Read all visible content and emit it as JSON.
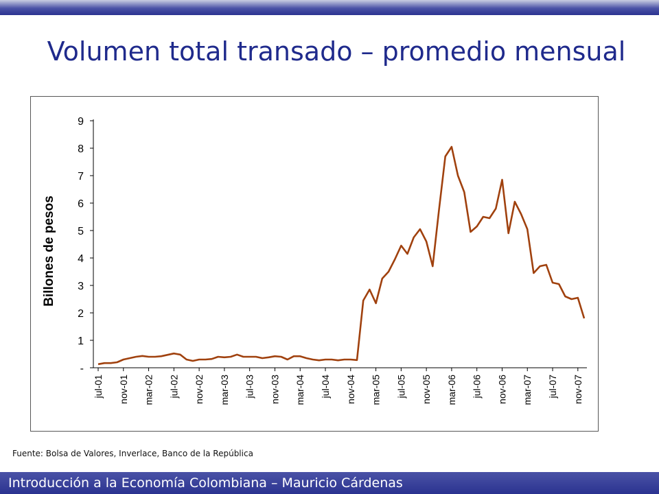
{
  "slide": {
    "title": "Volumen total transado – promedio mensual",
    "source": "Fuente: Bolsa de Valores, Inverlace, Banco de la República",
    "footer": "Introducción a la Economía Colombiana – Mauricio Cárdenas"
  },
  "colors": {
    "title": "#1f2a8c",
    "band": "#2b3390",
    "series": "#a0410e"
  },
  "chart_data": {
    "type": "line",
    "title": "",
    "xlabel": "",
    "ylabel": "Billones de pesos",
    "ylim": [
      0,
      9
    ],
    "y_ticks": [
      "-",
      "1",
      "2",
      "3",
      "4",
      "5",
      "6",
      "7",
      "8",
      "9"
    ],
    "x_ticks": [
      "jul-01",
      "nov-01",
      "mar-02",
      "jul-02",
      "nov-02",
      "mar-03",
      "jul-03",
      "nov-03",
      "mar-04",
      "jul-04",
      "nov-04",
      "mar-05",
      "jul-05",
      "nov-05",
      "mar-06",
      "jul-06",
      "nov-06",
      "mar-07",
      "jul-07",
      "nov-07"
    ],
    "grid": false,
    "series": [
      {
        "x": [
          "jul-01",
          "ago-01",
          "sep-01",
          "oct-01",
          "nov-01",
          "dic-01",
          "ene-02",
          "feb-02",
          "mar-02",
          "abr-02",
          "may-02",
          "jun-02",
          "jul-02",
          "ago-02",
          "sep-02",
          "oct-02",
          "nov-02",
          "dic-02",
          "ene-03",
          "feb-03",
          "mar-03",
          "abr-03",
          "may-03",
          "jun-03",
          "jul-03",
          "ago-03",
          "sep-03",
          "oct-03",
          "nov-03",
          "dic-03",
          "ene-04",
          "feb-04",
          "mar-04",
          "abr-04",
          "may-04",
          "jun-04",
          "jul-04",
          "ago-04",
          "sep-04",
          "oct-04",
          "nov-04",
          "dic-04",
          "ene-05",
          "feb-05",
          "mar-05",
          "abr-05",
          "may-05",
          "jun-05",
          "jul-05",
          "ago-05",
          "sep-05",
          "oct-05",
          "nov-05",
          "dic-05",
          "ene-06",
          "feb-06",
          "mar-06",
          "abr-06",
          "may-06",
          "jun-06",
          "jul-06",
          "ago-06",
          "sep-06",
          "oct-06",
          "nov-06",
          "dic-06",
          "ene-07",
          "feb-07",
          "mar-07",
          "abr-07",
          "may-07",
          "jun-07",
          "jul-07",
          "ago-07",
          "sep-07",
          "oct-07",
          "nov-07",
          "dic-07"
        ],
        "values": [
          0.13,
          0.17,
          0.17,
          0.2,
          0.3,
          0.35,
          0.4,
          0.43,
          0.4,
          0.4,
          0.42,
          0.47,
          0.52,
          0.48,
          0.3,
          0.25,
          0.3,
          0.3,
          0.32,
          0.4,
          0.38,
          0.4,
          0.48,
          0.4,
          0.4,
          0.4,
          0.35,
          0.38,
          0.42,
          0.4,
          0.3,
          0.42,
          0.42,
          0.35,
          0.3,
          0.27,
          0.3,
          0.3,
          0.27,
          0.3,
          0.3,
          0.28,
          2.45,
          2.85,
          2.35,
          3.25,
          3.5,
          3.95,
          4.45,
          4.15,
          4.75,
          5.05,
          4.6,
          3.7,
          5.75,
          7.7,
          8.05,
          7.0,
          6.4,
          4.95,
          5.15,
          5.5,
          5.45,
          5.8,
          6.85,
          4.9,
          6.05,
          5.6,
          5.05,
          3.45,
          3.7,
          3.75,
          3.1,
          3.05,
          2.6,
          2.5,
          2.55,
          1.8
        ]
      }
    ]
  }
}
